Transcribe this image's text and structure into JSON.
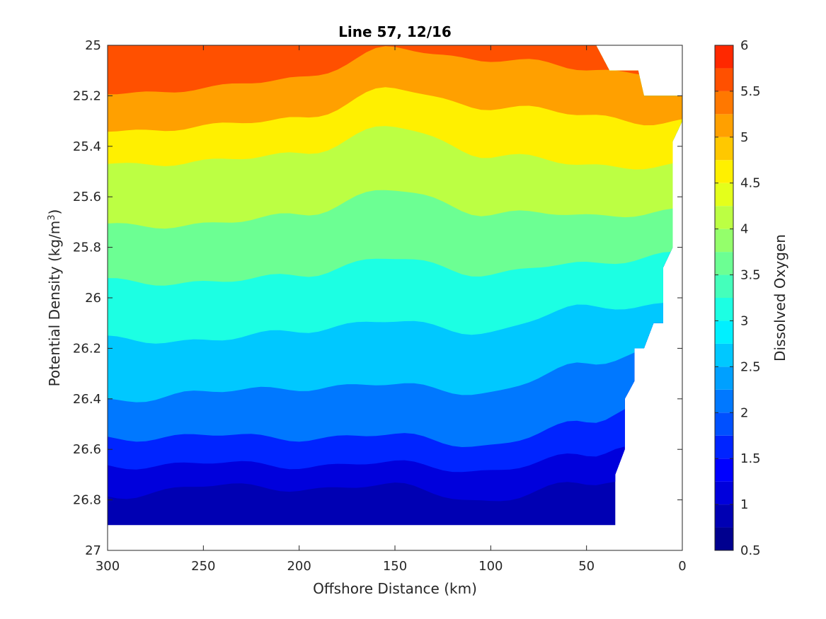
{
  "chart_data": {
    "type": "contourf",
    "title": "Line 57, 12/16",
    "xlabel": "Offshore Distance (km)",
    "ylabel_main": "Potential Density (kg/m",
    "ylabel_sup": "3",
    "ylabel_close": ")",
    "xlim": [
      300,
      0
    ],
    "ylim": [
      27,
      25
    ],
    "x_reversed": true,
    "y_reversed": true,
    "xticks": [
      300,
      250,
      200,
      150,
      100,
      50,
      0
    ],
    "xtick_labels": [
      "300",
      "250",
      "200",
      "150",
      "100",
      "50",
      "0"
    ],
    "yticks": [
      25,
      25.2,
      25.4,
      25.6,
      25.8,
      26,
      26.2,
      26.4,
      26.6,
      26.8,
      27
    ],
    "ytick_labels": [
      "25",
      "25.2",
      "25.4",
      "25.6",
      "25.8",
      "26",
      "26.2",
      "26.4",
      "26.6",
      "26.8",
      "27"
    ],
    "colorbar": {
      "label": "Dissolved Oxygen",
      "clim": [
        0.5,
        6
      ],
      "ticks": [
        0.5,
        1,
        1.5,
        2,
        2.5,
        3,
        3.5,
        4,
        4.5,
        5,
        5.5,
        6
      ],
      "tick_labels": [
        "0.5",
        "1",
        "1.5",
        "2",
        "2.5",
        "3",
        "3.5",
        "4",
        "4.5",
        "5",
        "5.5",
        "6"
      ],
      "colormap": "jet"
    },
    "levels": [
      0.5,
      0.75,
      1,
      1.25,
      1.5,
      1.75,
      2,
      2.25,
      2.5,
      2.75,
      3,
      3.25,
      3.5,
      3.75,
      4,
      4.25,
      4.5,
      4.75,
      5,
      5.25,
      5.5,
      5.75,
      6
    ],
    "level_colors": [
      "#00008F",
      "#0000B3",
      "#0000DC",
      "#0000FF",
      "#0024FF",
      "#0050FF",
      "#0078FF",
      "#00A0FF",
      "#00C8FF",
      "#00F0FF",
      "#1CFFE3",
      "#44FFBB",
      "#6CFF93",
      "#94FF6B",
      "#BCFF43",
      "#E4FF1B",
      "#FFF000",
      "#FFC800",
      "#FFA000",
      "#FF7800",
      "#FF5000",
      "#FF2800",
      "#DC0000",
      "#B40000"
    ],
    "contour_boundaries_density": [
      {
        "level": 5.5,
        "x": [
          300,
          250,
          200,
          150,
          100,
          50
        ],
        "y": [
          25.18,
          25.18,
          25.12,
          25.02,
          25.05,
          25.1
        ]
      },
      {
        "level": 5,
        "x": [
          300,
          250,
          200,
          150,
          100,
          50,
          10
        ],
        "y": [
          25.33,
          25.33,
          25.28,
          25.18,
          25.24,
          25.28,
          25.3
        ]
      },
      {
        "level": 4.5,
        "x": [
          300,
          250,
          200,
          150,
          100,
          50,
          10
        ],
        "y": [
          25.46,
          25.47,
          25.42,
          25.33,
          25.43,
          25.48,
          25.47
        ]
      },
      {
        "level": 4,
        "x": [
          300,
          250,
          200,
          150,
          100,
          50,
          10
        ],
        "y": [
          25.7,
          25.72,
          25.66,
          25.58,
          25.66,
          25.68,
          25.65
        ]
      },
      {
        "level": 3.5,
        "x": [
          300,
          250,
          200,
          150,
          100,
          50,
          10
        ],
        "y": [
          25.92,
          25.95,
          25.9,
          25.85,
          25.9,
          25.87,
          25.82
        ]
      },
      {
        "level": 3,
        "x": [
          300,
          250,
          200,
          150,
          100,
          50,
          15
        ],
        "y": [
          26.15,
          26.18,
          26.12,
          26.1,
          26.13,
          26.04,
          26.02
        ]
      },
      {
        "level": 2.5,
        "x": [
          300,
          250,
          200,
          150,
          100,
          50,
          20
        ],
        "y": [
          26.4,
          26.38,
          26.35,
          26.35,
          26.37,
          26.27,
          26.2
        ]
      },
      {
        "level": 2,
        "x": [
          300,
          250,
          200,
          150,
          100,
          50,
          25
        ],
        "y": [
          26.55,
          26.55,
          26.55,
          26.55,
          26.58,
          26.5,
          26.42
        ]
      },
      {
        "level": 1.5,
        "x": [
          300,
          250,
          200,
          150,
          100,
          50,
          30
        ],
        "y": [
          26.66,
          26.66,
          26.66,
          26.66,
          26.68,
          26.63,
          26.58
        ]
      },
      {
        "level": 1,
        "x": [
          300,
          250,
          200,
          150,
          100,
          50,
          35
        ],
        "y": [
          26.78,
          26.75,
          26.75,
          26.75,
          26.8,
          26.74,
          26.72
        ]
      }
    ]
  }
}
